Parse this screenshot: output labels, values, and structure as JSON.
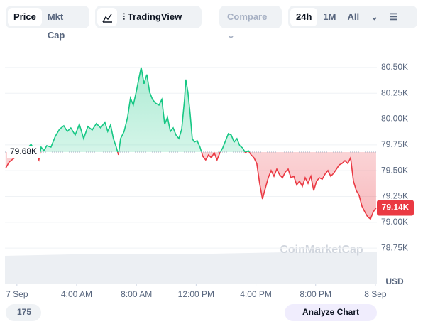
{
  "toolbar": {
    "tabs": [
      "Price",
      "Mkt Cap"
    ],
    "tradingview": "TradingView",
    "compare": "Compare",
    "ranges": [
      "24h",
      "1M",
      "All"
    ]
  },
  "chart_data": {
    "type": "line",
    "x": [
      -0.76,
      -0.52,
      0.76,
      0.95,
      1.14,
      1.47,
      1.62,
      1.81,
      2.0,
      2.28,
      2.57,
      2.85,
      3.14,
      3.37,
      3.61,
      3.9,
      4.18,
      4.47,
      4.75,
      5.04,
      5.32,
      5.61,
      5.89,
      6.08,
      6.27,
      6.46,
      6.65,
      6.8,
      6.94,
      7.18,
      7.41,
      7.6,
      7.79,
      7.98,
      8.17,
      8.32,
      8.51,
      8.7,
      8.89,
      9.08,
      9.27,
      9.51,
      9.7,
      9.89,
      10.08,
      10.27,
      10.46,
      10.65,
      10.84,
      11.03,
      11.22,
      11.31,
      11.45,
      11.6,
      11.74,
      11.88,
      12.07,
      12.26,
      12.45,
      12.64,
      12.83,
      13.02,
      13.21,
      13.4,
      13.59,
      13.78,
      13.97,
      14.16,
      14.35,
      14.54,
      14.73,
      14.92,
      15.11,
      15.3,
      15.49,
      15.68,
      15.87,
      16.06,
      16.25,
      16.44,
      16.63,
      16.83,
      17.02,
      17.21,
      17.4,
      17.59,
      17.78,
      17.97,
      18.16,
      18.35,
      18.54,
      18.73,
      18.92,
      19.11,
      19.3,
      19.49,
      19.68,
      19.87,
      20.06,
      20.25,
      20.44,
      20.63,
      20.82,
      21.01,
      21.2,
      21.39,
      21.58,
      21.77,
      21.96,
      22.15,
      22.34,
      22.53,
      22.72,
      22.91,
      23.1,
      23.29,
      23.48,
      23.67,
      23.86,
      24.05
    ],
    "series": [
      {
        "color": "#16c784",
        "down_color": "#ea3943",
        "values": [
          79522,
          79584,
          79728,
          79756,
          79708,
          79604,
          79728,
          79694,
          79742,
          79728,
          79832,
          79901,
          79935,
          79880,
          79914,
          79845,
          79949,
          79811,
          79928,
          79894,
          79956,
          79914,
          79969,
          79880,
          79942,
          79811,
          79728,
          79653,
          79811,
          79880,
          80018,
          80204,
          80135,
          80259,
          80397,
          80500,
          80342,
          80431,
          80259,
          80190,
          80156,
          80135,
          80190,
          79949,
          80018,
          79880,
          79914,
          79845,
          79811,
          79901,
          80190,
          80383,
          80259,
          80052,
          79811,
          79777,
          79790,
          79728,
          79639,
          79604,
          79653,
          79625,
          79673,
          79604,
          79673,
          79721,
          79790,
          79859,
          79845,
          79777,
          79811,
          79742,
          79721,
          79673,
          79694,
          79653,
          79625,
          79570,
          79377,
          79225,
          79329,
          79432,
          79501,
          79446,
          79515,
          79460,
          79432,
          79487,
          79515,
          79432,
          79446,
          79363,
          79398,
          79349,
          79432,
          79377,
          79446,
          79308,
          79398,
          79432,
          79418,
          79467,
          79501,
          79446,
          79474,
          79515,
          79556,
          79570,
          79597,
          79570,
          79625,
          79398,
          79308,
          79260,
          79156,
          79101,
          79053,
          79032,
          79101,
          79140
        ]
      }
    ],
    "baseline": {
      "value": 79680,
      "label": "79.68K"
    },
    "last_price": {
      "value": 79140,
      "label": "79.14K"
    },
    "xlim": [
      -0.8,
      24.1
    ],
    "xticks": [
      {
        "value": 0,
        "label": "7 Sep"
      },
      {
        "value": 4,
        "label": "4:00 AM"
      },
      {
        "value": 8,
        "label": "8:00 AM"
      },
      {
        "value": 12,
        "label": "12:00 PM"
      },
      {
        "value": 16,
        "label": "4:00 PM"
      },
      {
        "value": 20,
        "label": "8:00 PM"
      },
      {
        "value": 24,
        "label": "8 Sep"
      }
    ],
    "ylim": [
      78400,
      80740
    ],
    "yticks": [
      {
        "value": 78750,
        "label": "78.75K"
      },
      {
        "value": 79000,
        "label": "79.00K"
      },
      {
        "value": 79250,
        "label": "79.25K"
      },
      {
        "value": 79500,
        "label": "79.50K"
      },
      {
        "value": 79750,
        "label": "79.75K"
      },
      {
        "value": 80000,
        "label": "80.00K"
      },
      {
        "value": 80250,
        "label": "80.25K"
      },
      {
        "value": 80500,
        "label": "80.50K"
      }
    ],
    "grid": true,
    "unit": "USD",
    "watermark": "CoinMarketCap"
  },
  "footer": {
    "badge": "175",
    "button": "Analyze Chart"
  }
}
